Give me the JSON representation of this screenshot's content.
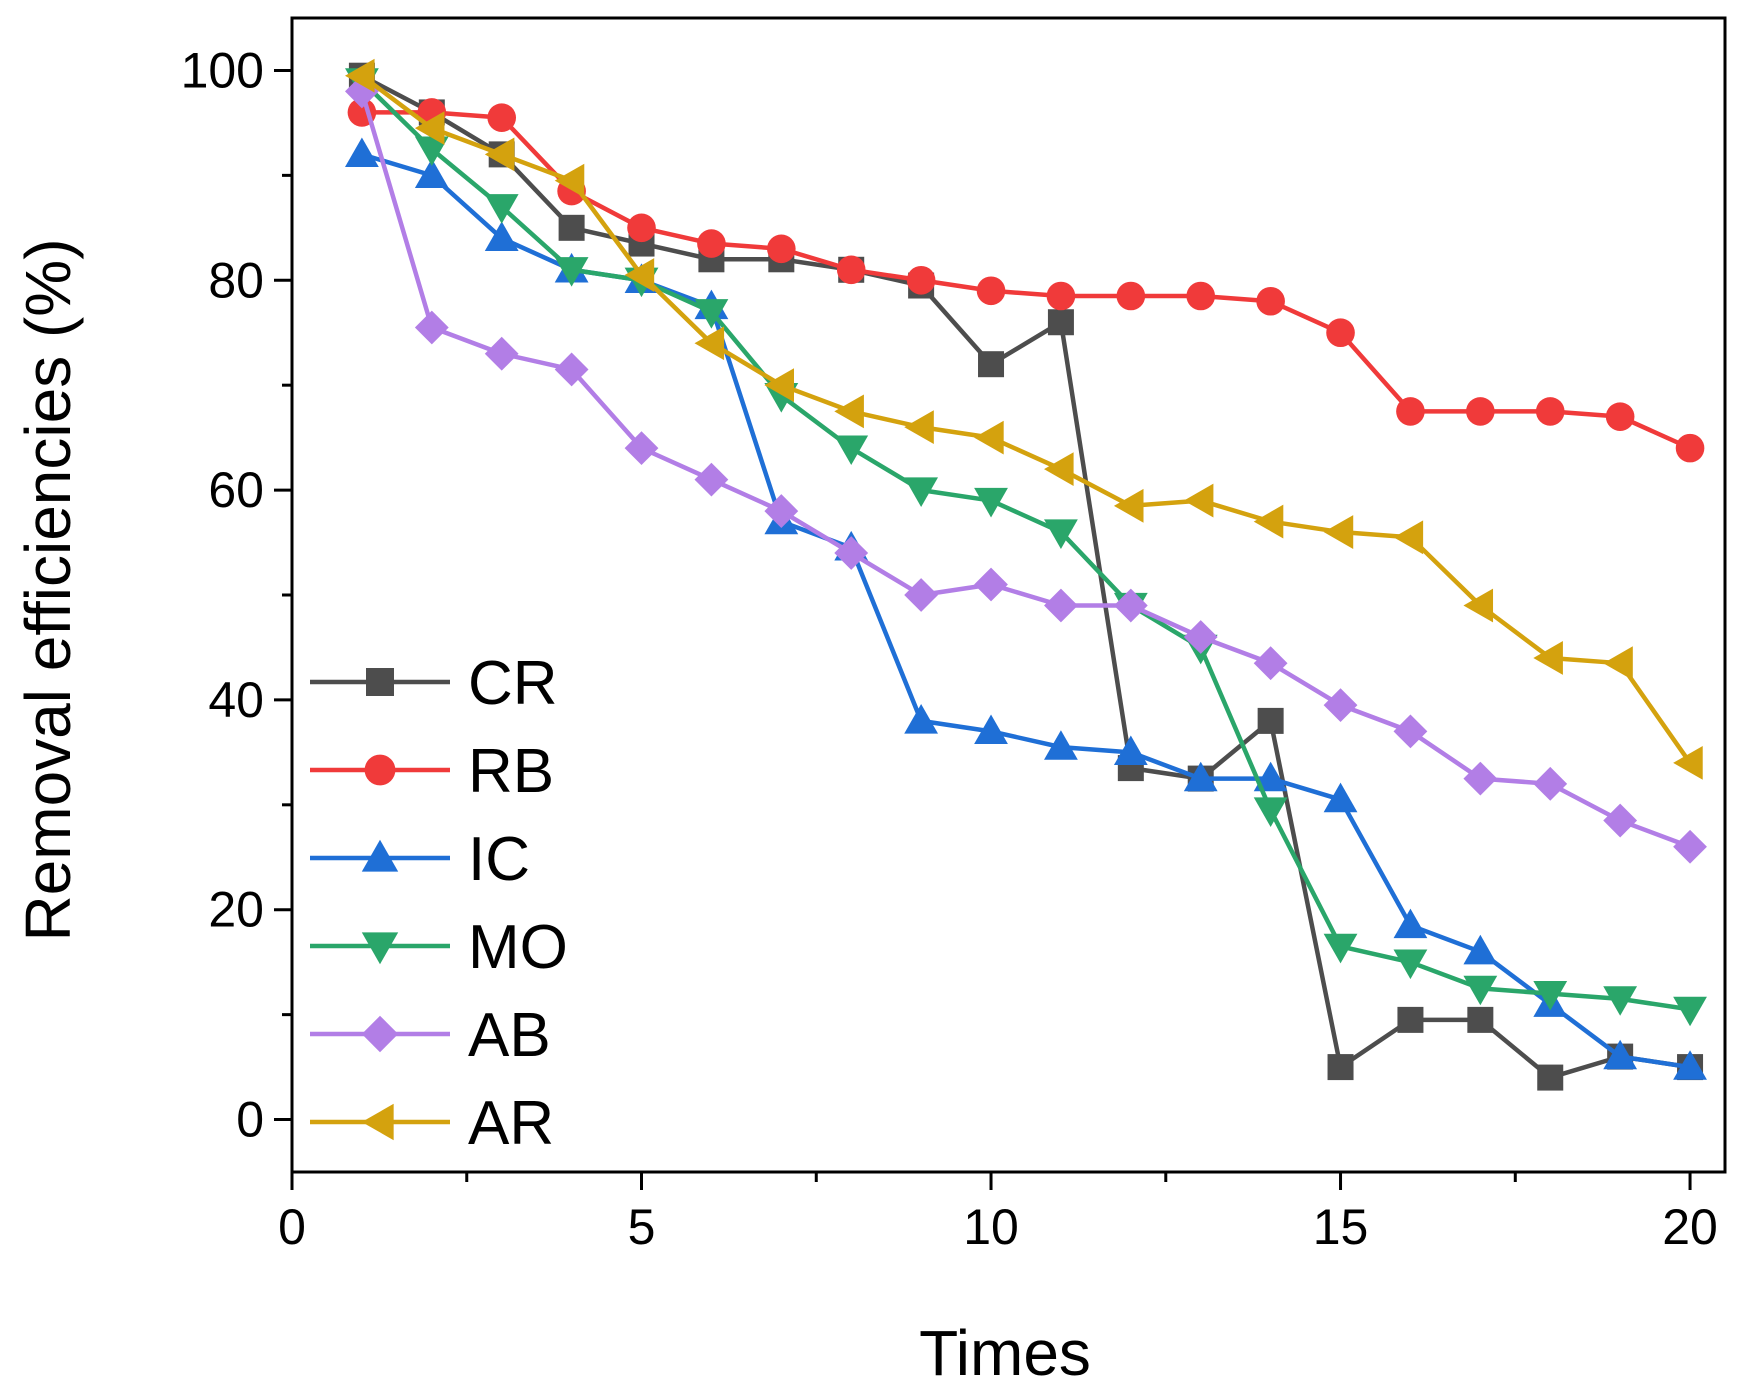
{
  "chart_data": {
    "type": "line",
    "xlabel": "Times",
    "ylabel": "Removal efficiencies (%)",
    "xlim": [
      0,
      20.5
    ],
    "ylim": [
      -5,
      105
    ],
    "xticks": [
      0,
      5,
      10,
      15,
      20
    ],
    "yticks": [
      0,
      20,
      40,
      60,
      80,
      100
    ],
    "legend_position": "bottom-left",
    "grid": false,
    "x": [
      1,
      2,
      3,
      4,
      5,
      6,
      7,
      8,
      9,
      10,
      11,
      12,
      13,
      14,
      15,
      16,
      17,
      18,
      19,
      20
    ],
    "series": [
      {
        "name": "CR",
        "color": "#4d4d4d",
        "marker": "square",
        "values": [
          99.5,
          96,
          92,
          85,
          83.5,
          82,
          82,
          81,
          79.5,
          72,
          76,
          33.5,
          32.5,
          38,
          5,
          9.5,
          9.5,
          4,
          6,
          5
        ]
      },
      {
        "name": "RB",
        "color": "#f03a3a",
        "marker": "circle",
        "values": [
          96,
          96,
          95.5,
          88.5,
          85,
          83.5,
          83,
          81,
          80,
          79,
          78.5,
          78.5,
          78.5,
          78,
          75,
          67.5,
          67.5,
          67.5,
          67,
          64
        ]
      },
      {
        "name": "IC",
        "color": "#1f6fd6",
        "marker": "triangle-up",
        "values": [
          92,
          90,
          84,
          81,
          80,
          77.5,
          57,
          54.5,
          38,
          37,
          35.5,
          35,
          32.5,
          32.5,
          30.5,
          18.5,
          16,
          11,
          6,
          5
        ]
      },
      {
        "name": "MO",
        "color": "#2aa66a",
        "marker": "triangle-down",
        "values": [
          99,
          92.5,
          87,
          81,
          80,
          77,
          69,
          64,
          60,
          59,
          56,
          49,
          45,
          29.5,
          16.5,
          15,
          12.5,
          12,
          11.5,
          10.5
        ]
      },
      {
        "name": "AB",
        "color": "#b27ee6",
        "marker": "diamond",
        "values": [
          98,
          75.5,
          73,
          71.5,
          64,
          61,
          58,
          54,
          50,
          51,
          49,
          49,
          46,
          43.5,
          39.5,
          37,
          32.5,
          32,
          28.5,
          26
        ]
      },
      {
        "name": "AR",
        "color": "#d4a20e",
        "marker": "triangle-left",
        "values": [
          99.5,
          94.5,
          92,
          89.5,
          80.5,
          74,
          70,
          67.5,
          66,
          65,
          62,
          58.5,
          59,
          57,
          56,
          55.5,
          49,
          44,
          43.5,
          34
        ]
      }
    ]
  }
}
